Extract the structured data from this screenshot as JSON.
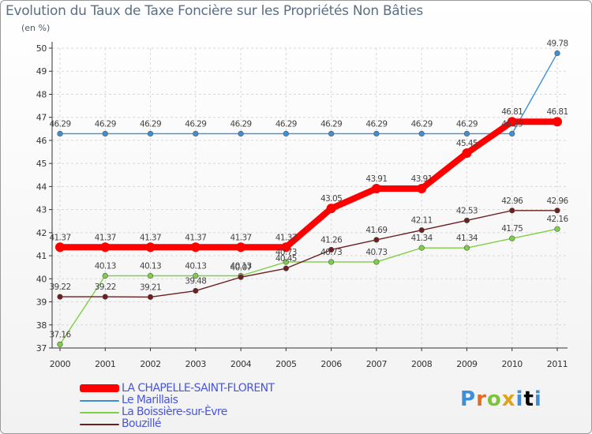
{
  "title": "Evolution du Taux de Taxe Foncière sur les Propriétés Non Bâties",
  "unit_label": "(en %)",
  "logo": {
    "text": "Proxiti",
    "letters": [
      "P",
      "r",
      "o",
      "x",
      "i",
      "t",
      "i"
    ]
  },
  "chart_data": {
    "type": "line",
    "title": "Evolution du Taux de Taxe Foncière sur les Propriétés Non Bâties",
    "ylabel": "(en %)",
    "xlabel": "",
    "categories": [
      "2000",
      "2001",
      "2002",
      "2003",
      "2004",
      "2005",
      "2006",
      "2007",
      "2008",
      "2009",
      "2010",
      "2011"
    ],
    "ylim": [
      37,
      50
    ],
    "yticks": [
      37,
      38,
      39,
      40,
      41,
      42,
      43,
      44,
      45,
      46,
      47,
      48,
      49,
      50
    ],
    "grid": true,
    "legend_position": "bottom-left",
    "series": [
      {
        "name": "LA CHAPELLE-SAINT-FLORENT",
        "color": "#ff0000",
        "emphasis": true,
        "values": [
          41.37,
          41.37,
          41.37,
          41.37,
          41.37,
          41.37,
          43.05,
          43.91,
          43.91,
          45.45,
          46.81,
          46.81
        ]
      },
      {
        "name": "Le Marillais",
        "color": "#3d8fd6",
        "emphasis": false,
        "values": [
          46.29,
          46.29,
          46.29,
          46.29,
          46.29,
          46.29,
          46.29,
          46.29,
          46.29,
          46.29,
          46.29,
          49.78
        ]
      },
      {
        "name": "La Boissière-sur-Èvre",
        "color": "#7fcf45",
        "emphasis": false,
        "values": [
          37.16,
          40.13,
          40.13,
          40.13,
          40.13,
          40.73,
          40.73,
          40.73,
          41.34,
          41.34,
          41.75,
          42.16
        ]
      },
      {
        "name": "Bouzillé",
        "color": "#6b1f1f",
        "emphasis": false,
        "values": [
          39.22,
          39.22,
          39.21,
          39.48,
          40.07,
          40.45,
          41.26,
          41.69,
          42.11,
          42.53,
          42.96,
          42.96
        ]
      }
    ]
  }
}
